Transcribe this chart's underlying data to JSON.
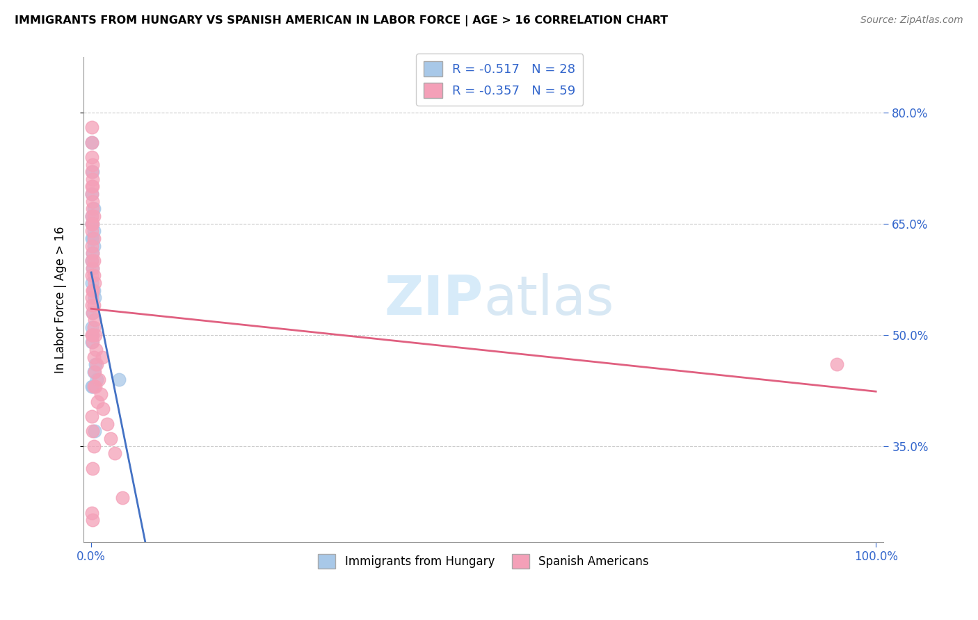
{
  "title": "IMMIGRANTS FROM HUNGARY VS SPANISH AMERICAN IN LABOR FORCE | AGE > 16 CORRELATION CHART",
  "source": "Source: ZipAtlas.com",
  "ylabel": "In Labor Force | Age > 16",
  "hungary_R": -0.517,
  "hungary_N": 28,
  "spanish_R": -0.357,
  "spanish_N": 59,
  "hungary_color": "#a8c8e8",
  "spanish_color": "#f4a0b8",
  "hungary_line_color": "#4472c4",
  "spanish_line_color": "#e06080",
  "watermark_color": "#d0e8f8",
  "grid_color": "#cccccc",
  "tick_color": "#3366cc",
  "hungary_x": [
    0.001,
    0.002,
    0.001,
    0.003,
    0.001,
    0.002,
    0.001,
    0.003,
    0.002,
    0.001,
    0.003,
    0.002,
    0.001,
    0.002,
    0.001,
    0.003,
    0.004,
    0.002,
    0.001,
    0.002,
    0.001,
    0.005,
    0.003,
    0.035,
    0.007,
    0.002,
    0.001,
    0.004
  ],
  "hungary_y": [
    0.76,
    0.72,
    0.69,
    0.67,
    0.66,
    0.65,
    0.65,
    0.64,
    0.63,
    0.63,
    0.62,
    0.61,
    0.6,
    0.59,
    0.57,
    0.56,
    0.55,
    0.53,
    0.51,
    0.5,
    0.49,
    0.46,
    0.45,
    0.44,
    0.44,
    0.43,
    0.43,
    0.37
  ],
  "spanish_x": [
    0.001,
    0.001,
    0.001,
    0.002,
    0.001,
    0.002,
    0.001,
    0.002,
    0.001,
    0.002,
    0.002,
    0.001,
    0.003,
    0.001,
    0.002,
    0.001,
    0.003,
    0.001,
    0.002,
    0.003,
    0.002,
    0.001,
    0.004,
    0.002,
    0.001,
    0.003,
    0.002,
    0.004,
    0.003,
    0.001,
    0.005,
    0.002,
    0.006,
    0.003,
    0.007,
    0.004,
    0.01,
    0.005,
    0.012,
    0.008,
    0.015,
    0.001,
    0.02,
    0.002,
    0.025,
    0.003,
    0.03,
    0.002,
    0.04,
    0.001,
    0.002,
    0.003,
    0.001,
    0.002,
    0.014,
    0.003,
    0.002,
    0.001,
    0.95
  ],
  "spanish_y": [
    0.78,
    0.76,
    0.74,
    0.73,
    0.72,
    0.71,
    0.7,
    0.7,
    0.69,
    0.68,
    0.67,
    0.66,
    0.66,
    0.65,
    0.65,
    0.64,
    0.63,
    0.62,
    0.61,
    0.6,
    0.59,
    0.58,
    0.57,
    0.56,
    0.55,
    0.54,
    0.53,
    0.52,
    0.51,
    0.5,
    0.5,
    0.49,
    0.48,
    0.47,
    0.46,
    0.45,
    0.44,
    0.43,
    0.42,
    0.41,
    0.4,
    0.39,
    0.38,
    0.37,
    0.36,
    0.35,
    0.34,
    0.32,
    0.28,
    0.54,
    0.56,
    0.58,
    0.6,
    0.5,
    0.47,
    0.43,
    0.25,
    0.26,
    0.46
  ],
  "xlim": [
    0.0,
    1.0
  ],
  "ylim": [
    0.22,
    0.875
  ],
  "yticks": [
    0.35,
    0.5,
    0.65,
    0.8
  ],
  "ytick_labels": [
    "35.0%",
    "50.0%",
    "65.0%",
    "80.0%"
  ],
  "xtick_left": "0.0%",
  "xtick_right": "100.0%"
}
